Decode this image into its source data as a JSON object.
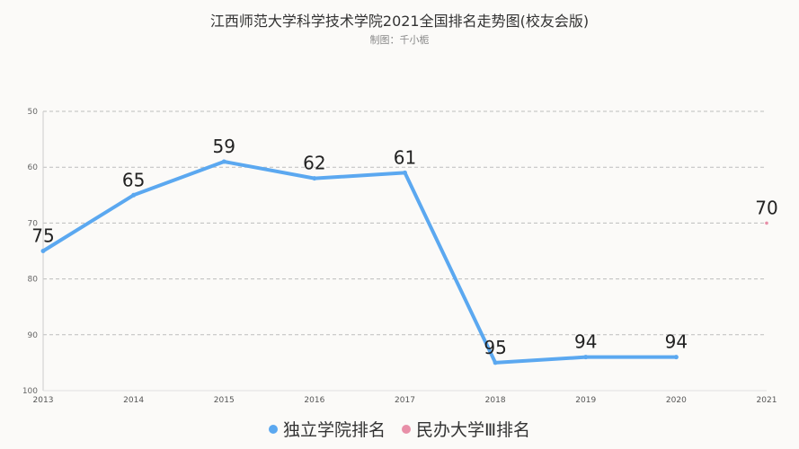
{
  "title": "江西师范大学科学技术学院2021全国排名走势图(校友会版)",
  "subtitle": "制图：千小栀",
  "chart_data": {
    "type": "line",
    "x": [
      "2013",
      "2014",
      "2015",
      "2016",
      "2017",
      "2018",
      "2019",
      "2020",
      "2021"
    ],
    "y_ticks": [
      50,
      60,
      70,
      80,
      90,
      100
    ],
    "ylim": [
      50,
      100
    ],
    "y_inverted": true,
    "grid": true,
    "legend_position": "bottom",
    "series": [
      {
        "name": "独立学院排名",
        "color": "#5ba8f0",
        "values": [
          75,
          65,
          59,
          62,
          61,
          95,
          94,
          94,
          null
        ],
        "labels": [
          "75",
          "65",
          "59",
          "62",
          "61",
          "95",
          "94",
          "94",
          ""
        ]
      },
      {
        "name": "民办大学Ⅲ排名",
        "color": "#e88fa8",
        "values": [
          null,
          null,
          null,
          null,
          null,
          null,
          null,
          null,
          70
        ],
        "labels": [
          "",
          "",
          "",
          "",
          "",
          "",
          "",
          "",
          "70"
        ]
      }
    ]
  }
}
